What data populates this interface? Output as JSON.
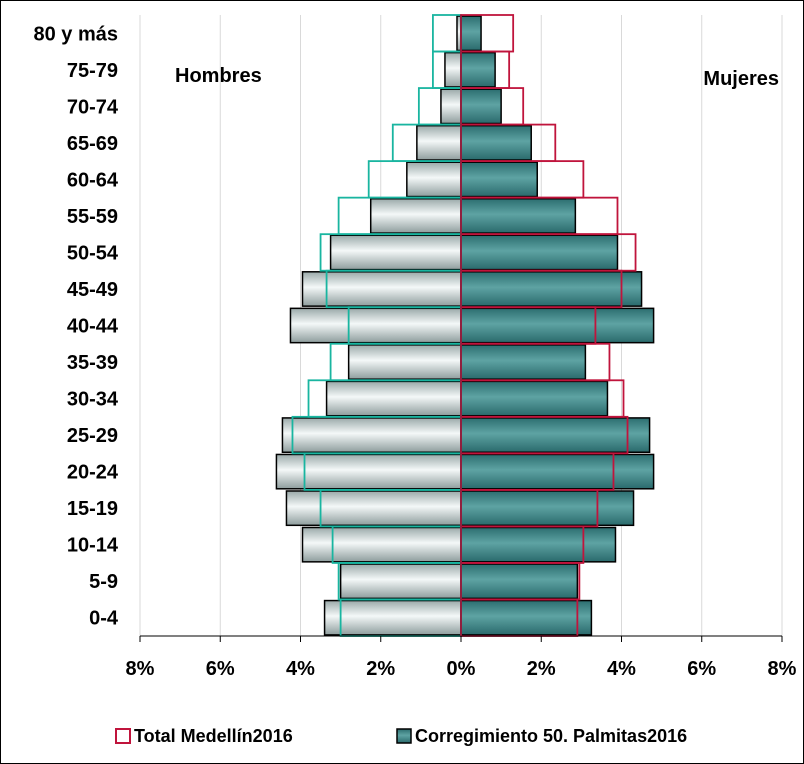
{
  "chart_data": {
    "type": "bar",
    "orientation": "horizontal",
    "subtype": "population-pyramid",
    "categories": [
      "0-4",
      "5-9",
      "10-14",
      "15-19",
      "20-24",
      "25-29",
      "30-34",
      "35-39",
      "40-44",
      "45-49",
      "50-54",
      "55-59",
      "60-64",
      "65-69",
      "70-74",
      "75-79",
      "80 y más"
    ],
    "series": [
      {
        "name": "Corregimiento 50. Palmitas2016",
        "color": "#3f8f8f",
        "hombres": [
          3.4,
          3.0,
          3.95,
          4.35,
          4.6,
          4.45,
          3.35,
          2.8,
          4.25,
          3.95,
          3.25,
          2.25,
          1.35,
          1.1,
          0.5,
          0.4,
          0.1
        ],
        "mujeres": [
          3.25,
          2.9,
          3.85,
          4.3,
          4.8,
          4.7,
          3.65,
          3.1,
          4.8,
          4.5,
          3.9,
          2.85,
          1.9,
          1.75,
          1.0,
          0.85,
          0.5
        ]
      },
      {
        "name": "Total Medellín2016",
        "color": "#c0143c",
        "hombre_outline_color": "#19b5a0",
        "hombres": [
          3.0,
          3.05,
          3.2,
          3.5,
          3.9,
          4.2,
          3.8,
          3.25,
          2.8,
          3.35,
          3.5,
          3.05,
          2.3,
          1.7,
          1.05,
          0.7,
          0.7
        ],
        "mujeres": [
          2.9,
          2.95,
          3.05,
          3.4,
          3.8,
          4.15,
          4.05,
          3.7,
          3.35,
          4.0,
          4.35,
          3.9,
          3.05,
          2.35,
          1.55,
          1.2,
          1.3
        ]
      }
    ],
    "xlim": [
      -8,
      8
    ],
    "xticks": [
      -8,
      -6,
      -4,
      -2,
      0,
      2,
      4,
      6,
      8
    ],
    "xtick_labels": [
      "8%",
      "6%",
      "4%",
      "2%",
      "0%",
      "2%",
      "4%",
      "6%",
      "8%"
    ],
    "annotations": {
      "left": "Hombres",
      "right": "Mujeres"
    },
    "grid": true,
    "legend": {
      "position": "bottom",
      "items": [
        "Total Medellín2016",
        "Corregimiento 50. Palmitas2016"
      ]
    }
  }
}
